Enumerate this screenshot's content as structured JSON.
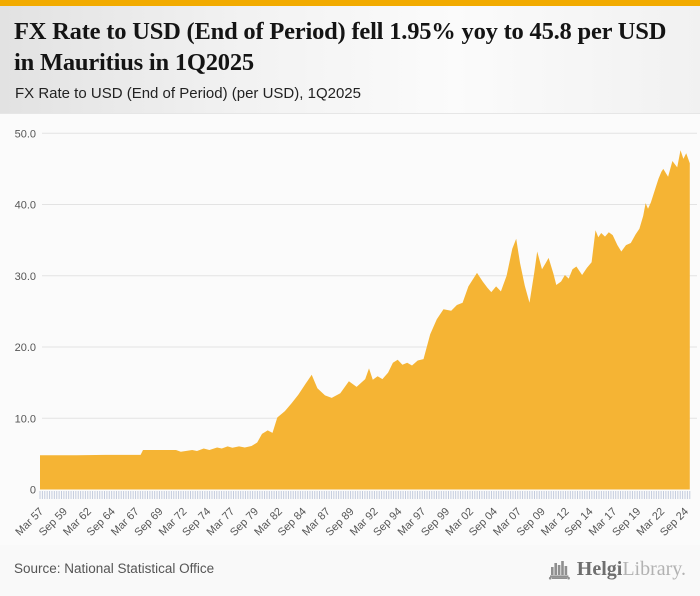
{
  "accent_bar_color": "#F2AB00",
  "header": {
    "title": "FX Rate to USD (End of Period) fell 1.95% yoy to 45.8 per USD in Mauritius in 1Q2025",
    "subtitle": "FX Rate to USD (End of Period) (per USD), 1Q2025"
  },
  "footer": {
    "source": "Source: National Statistical Office",
    "logo_icon": "helgi-bar-chart-icon",
    "logo_text_primary": "Helgi",
    "logo_text_secondary": "Library."
  },
  "chart_data": {
    "type": "area",
    "title": "FX Rate to USD (End of Period) (per USD), 1Q2025",
    "series_name": "Mauritius FX Rate to USD (End of Period)",
    "unit": "per USD",
    "latest_period": "1Q2025",
    "latest_value": 45.8,
    "yoy_change_pct": -1.95,
    "fill_color": "#F5B434",
    "grid_color": "#e3e3e3",
    "minor_tick_color": "#c3cbdd",
    "axis_text_color": "#565656",
    "ylim": [
      0,
      50
    ],
    "x_range": [
      1957.17,
      2025.17
    ],
    "grid": true,
    "legend": "none",
    "y_ticks": [
      {
        "label": "50.0",
        "value": 50
      },
      {
        "label": "40.0",
        "value": 40
      },
      {
        "label": "30.0",
        "value": 30
      },
      {
        "label": "20.0",
        "value": 20
      },
      {
        "label": "10.0",
        "value": 10
      },
      {
        "label": "0",
        "value": 0
      }
    ],
    "x_tick_labels": [
      "Mar 57",
      "Sep 59",
      "Mar 62",
      "Sep 64",
      "Mar 67",
      "Sep 69",
      "Mar 72",
      "Sep 74",
      "Mar 77",
      "Sep 79",
      "Mar 82",
      "Sep 84",
      "Mar 87",
      "Sep 89",
      "Mar 92",
      "Sep 94",
      "Mar 97",
      "Sep 99",
      "Mar 02",
      "Sep 04",
      "Mar 07",
      "Sep 09",
      "Mar 12",
      "Sep 14",
      "Mar 17",
      "Sep 19",
      "Mar 22",
      "Sep 24"
    ],
    "x_tick_interval_years": 2.5,
    "minor_tick_interval_years": 0.25,
    "points": [
      [
        1957.17,
        4.8
      ],
      [
        1961.0,
        4.8
      ],
      [
        1964.0,
        4.85
      ],
      [
        1967.7,
        4.85
      ],
      [
        1967.95,
        5.55
      ],
      [
        1971.4,
        5.55
      ],
      [
        1971.9,
        5.3
      ],
      [
        1972.6,
        5.45
      ],
      [
        1973.1,
        5.55
      ],
      [
        1973.6,
        5.4
      ],
      [
        1974.3,
        5.75
      ],
      [
        1974.9,
        5.55
      ],
      [
        1975.7,
        5.9
      ],
      [
        1976.2,
        5.75
      ],
      [
        1976.8,
        6.05
      ],
      [
        1977.3,
        5.85
      ],
      [
        1978.0,
        6.05
      ],
      [
        1978.6,
        5.9
      ],
      [
        1979.3,
        6.1
      ],
      [
        1979.9,
        6.6
      ],
      [
        1980.4,
        7.8
      ],
      [
        1981.0,
        8.3
      ],
      [
        1981.5,
        7.95
      ],
      [
        1982.0,
        10.1
      ],
      [
        1982.8,
        11.0
      ],
      [
        1983.5,
        12.1
      ],
      [
        1984.2,
        13.3
      ],
      [
        1985.0,
        14.9
      ],
      [
        1985.6,
        16.1
      ],
      [
        1986.2,
        14.2
      ],
      [
        1987.0,
        13.2
      ],
      [
        1987.7,
        12.85
      ],
      [
        1988.6,
        13.5
      ],
      [
        1989.5,
        15.2
      ],
      [
        1990.3,
        14.4
      ],
      [
        1991.2,
        15.5
      ],
      [
        1991.6,
        17.0
      ],
      [
        1992.0,
        15.4
      ],
      [
        1992.5,
        15.9
      ],
      [
        1993.0,
        15.5
      ],
      [
        1993.6,
        16.4
      ],
      [
        1994.1,
        17.8
      ],
      [
        1994.6,
        18.2
      ],
      [
        1995.1,
        17.5
      ],
      [
        1995.6,
        17.8
      ],
      [
        1996.1,
        17.4
      ],
      [
        1996.7,
        18.1
      ],
      [
        1997.3,
        18.3
      ],
      [
        1998.0,
        21.8
      ],
      [
        1998.7,
        23.9
      ],
      [
        1999.4,
        25.3
      ],
      [
        2000.2,
        25.1
      ],
      [
        2000.8,
        25.9
      ],
      [
        2001.4,
        26.2
      ],
      [
        2002.0,
        28.5
      ],
      [
        2002.9,
        30.4
      ],
      [
        2003.5,
        29.2
      ],
      [
        2004.0,
        28.3
      ],
      [
        2004.4,
        27.7
      ],
      [
        2004.9,
        28.5
      ],
      [
        2005.4,
        27.8
      ],
      [
        2006.0,
        30.0
      ],
      [
        2006.6,
        33.8
      ],
      [
        2007.0,
        35.2
      ],
      [
        2007.4,
        31.8
      ],
      [
        2007.9,
        28.6
      ],
      [
        2008.4,
        26.2
      ],
      [
        2008.9,
        30.5
      ],
      [
        2009.2,
        33.4
      ],
      [
        2009.7,
        30.9
      ],
      [
        2010.1,
        31.8
      ],
      [
        2010.4,
        32.5
      ],
      [
        2010.9,
        30.3
      ],
      [
        2011.2,
        28.7
      ],
      [
        2011.7,
        29.2
      ],
      [
        2012.1,
        30.1
      ],
      [
        2012.5,
        29.6
      ],
      [
        2012.9,
        30.9
      ],
      [
        2013.3,
        31.3
      ],
      [
        2013.9,
        30.1
      ],
      [
        2014.4,
        31.1
      ],
      [
        2014.9,
        31.9
      ],
      [
        2015.3,
        36.4
      ],
      [
        2015.6,
        35.4
      ],
      [
        2015.9,
        36.0
      ],
      [
        2016.3,
        35.5
      ],
      [
        2016.7,
        36.1
      ],
      [
        2017.1,
        35.7
      ],
      [
        2017.6,
        34.3
      ],
      [
        2018.0,
        33.4
      ],
      [
        2018.5,
        34.3
      ],
      [
        2019.0,
        34.6
      ],
      [
        2019.5,
        35.8
      ],
      [
        2019.9,
        36.6
      ],
      [
        2020.3,
        38.4
      ],
      [
        2020.55,
        40.2
      ],
      [
        2020.8,
        39.4
      ],
      [
        2021.1,
        40.3
      ],
      [
        2021.6,
        42.4
      ],
      [
        2021.9,
        43.6
      ],
      [
        2022.2,
        44.6
      ],
      [
        2022.4,
        45.0
      ],
      [
        2022.9,
        43.9
      ],
      [
        2023.35,
        46.1
      ],
      [
        2023.85,
        45.2
      ],
      [
        2024.2,
        47.6
      ],
      [
        2024.5,
        46.4
      ],
      [
        2024.8,
        47.2
      ],
      [
        2025.17,
        45.8
      ]
    ]
  }
}
